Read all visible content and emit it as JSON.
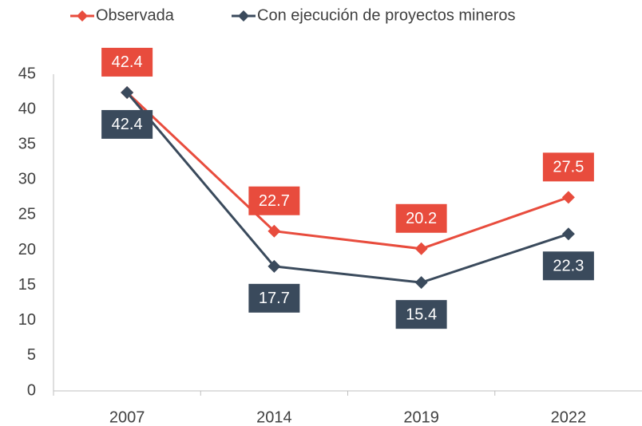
{
  "chart_data": {
    "type": "line",
    "categories": [
      "2007",
      "2014",
      "2019",
      "2022"
    ],
    "series": [
      {
        "name": "Observada",
        "color": "#e84c3d",
        "values": [
          42.4,
          22.7,
          20.2,
          27.5
        ]
      },
      {
        "name": "Con ejecución de proyectos mineros",
        "color": "#3a4a5c",
        "values": [
          42.4,
          17.7,
          15.4,
          22.3
        ]
      }
    ],
    "ylim": [
      0,
      45
    ],
    "yticks": [
      0,
      5,
      10,
      15,
      20,
      25,
      30,
      35,
      40,
      45
    ],
    "grid": false,
    "legend": "top"
  }
}
